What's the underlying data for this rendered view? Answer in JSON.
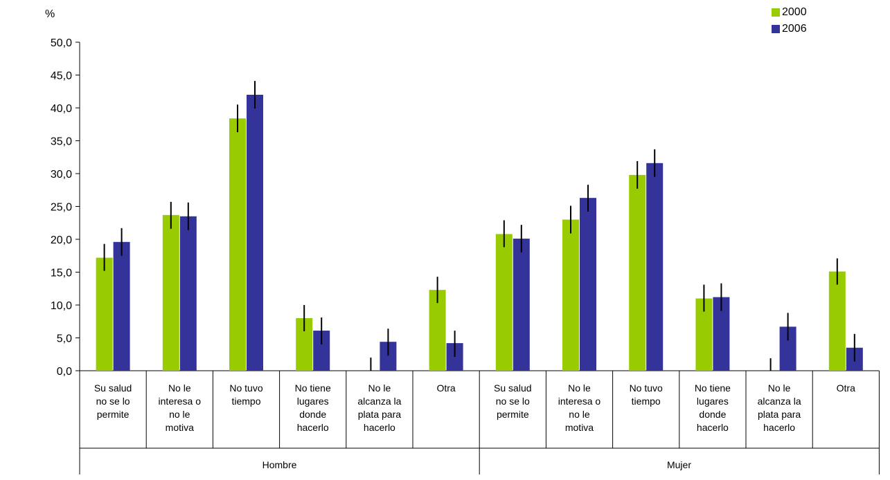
{
  "chart_data": {
    "type": "bar",
    "ylabel": "%",
    "ylim": [
      0,
      50
    ],
    "yticks": [
      "0,0",
      "5,0",
      "10,0",
      "15,0",
      "20,0",
      "25,0",
      "30,0",
      "35,0",
      "40,0",
      "45,0",
      "50,0"
    ],
    "groups": [
      "Hombre",
      "Mujer"
    ],
    "categories": [
      "Su salud no se lo permite",
      "No le interesa o no le motiva",
      "No tuvo tiempo",
      "No tiene lugares donde hacerlo",
      "No le alcanza la plata para hacerlo",
      "Otra",
      "Su salud no se lo permite",
      "No le interesa o no le motiva",
      "No tuvo tiempo",
      "No tiene lugares donde hacerlo",
      "No le alcanza la plata para hacerlo",
      "Otra"
    ],
    "category_lines": [
      [
        "Su salud",
        "no se lo",
        "permite"
      ],
      [
        "No le",
        "interesa o",
        "no le",
        "motiva"
      ],
      [
        "No tuvo",
        "tiempo"
      ],
      [
        "No tiene",
        "lugares",
        "donde",
        "hacerlo"
      ],
      [
        "No le",
        "alcanza la",
        "plata para",
        "hacerlo"
      ],
      [
        "Otra"
      ],
      [
        "Su salud",
        "no se lo",
        "permite"
      ],
      [
        "No le",
        "interesa o",
        "no le",
        "motiva"
      ],
      [
        "No tuvo",
        "tiempo"
      ],
      [
        "No tiene",
        "lugares",
        "donde",
        "hacerlo"
      ],
      [
        "No le",
        "alcanza la",
        "plata para",
        "hacerlo"
      ],
      [
        "Otra"
      ]
    ],
    "series": [
      {
        "name": "2000",
        "color": "#99cc00",
        "values": [
          17.2,
          23.7,
          38.4,
          8.0,
          0.0,
          12.3,
          20.8,
          23.0,
          29.8,
          11.0,
          0.0,
          15.1
        ],
        "err_low": [
          15.2,
          21.6,
          36.3,
          6.0,
          0.0,
          10.3,
          18.8,
          20.9,
          27.7,
          9.0,
          0.0,
          13.1
        ],
        "err_high": [
          19.3,
          25.7,
          40.5,
          10.0,
          2.0,
          14.3,
          22.9,
          25.1,
          31.9,
          13.1,
          1.9,
          17.1
        ]
      },
      {
        "name": "2006",
        "color": "#333399",
        "values": [
          19.6,
          23.5,
          42.0,
          6.1,
          4.4,
          4.2,
          20.1,
          26.3,
          31.6,
          11.2,
          6.7,
          3.5
        ],
        "err_low": [
          17.5,
          21.4,
          39.9,
          4.0,
          2.3,
          2.1,
          18.0,
          24.2,
          29.5,
          9.1,
          4.6,
          1.4
        ],
        "err_high": [
          21.7,
          25.6,
          44.1,
          8.1,
          6.4,
          6.1,
          22.2,
          28.3,
          33.7,
          13.3,
          8.8,
          5.6
        ]
      }
    ],
    "legend": {
      "position": "top-right",
      "labels": [
        "2000",
        "2006"
      ]
    },
    "grid": false
  }
}
